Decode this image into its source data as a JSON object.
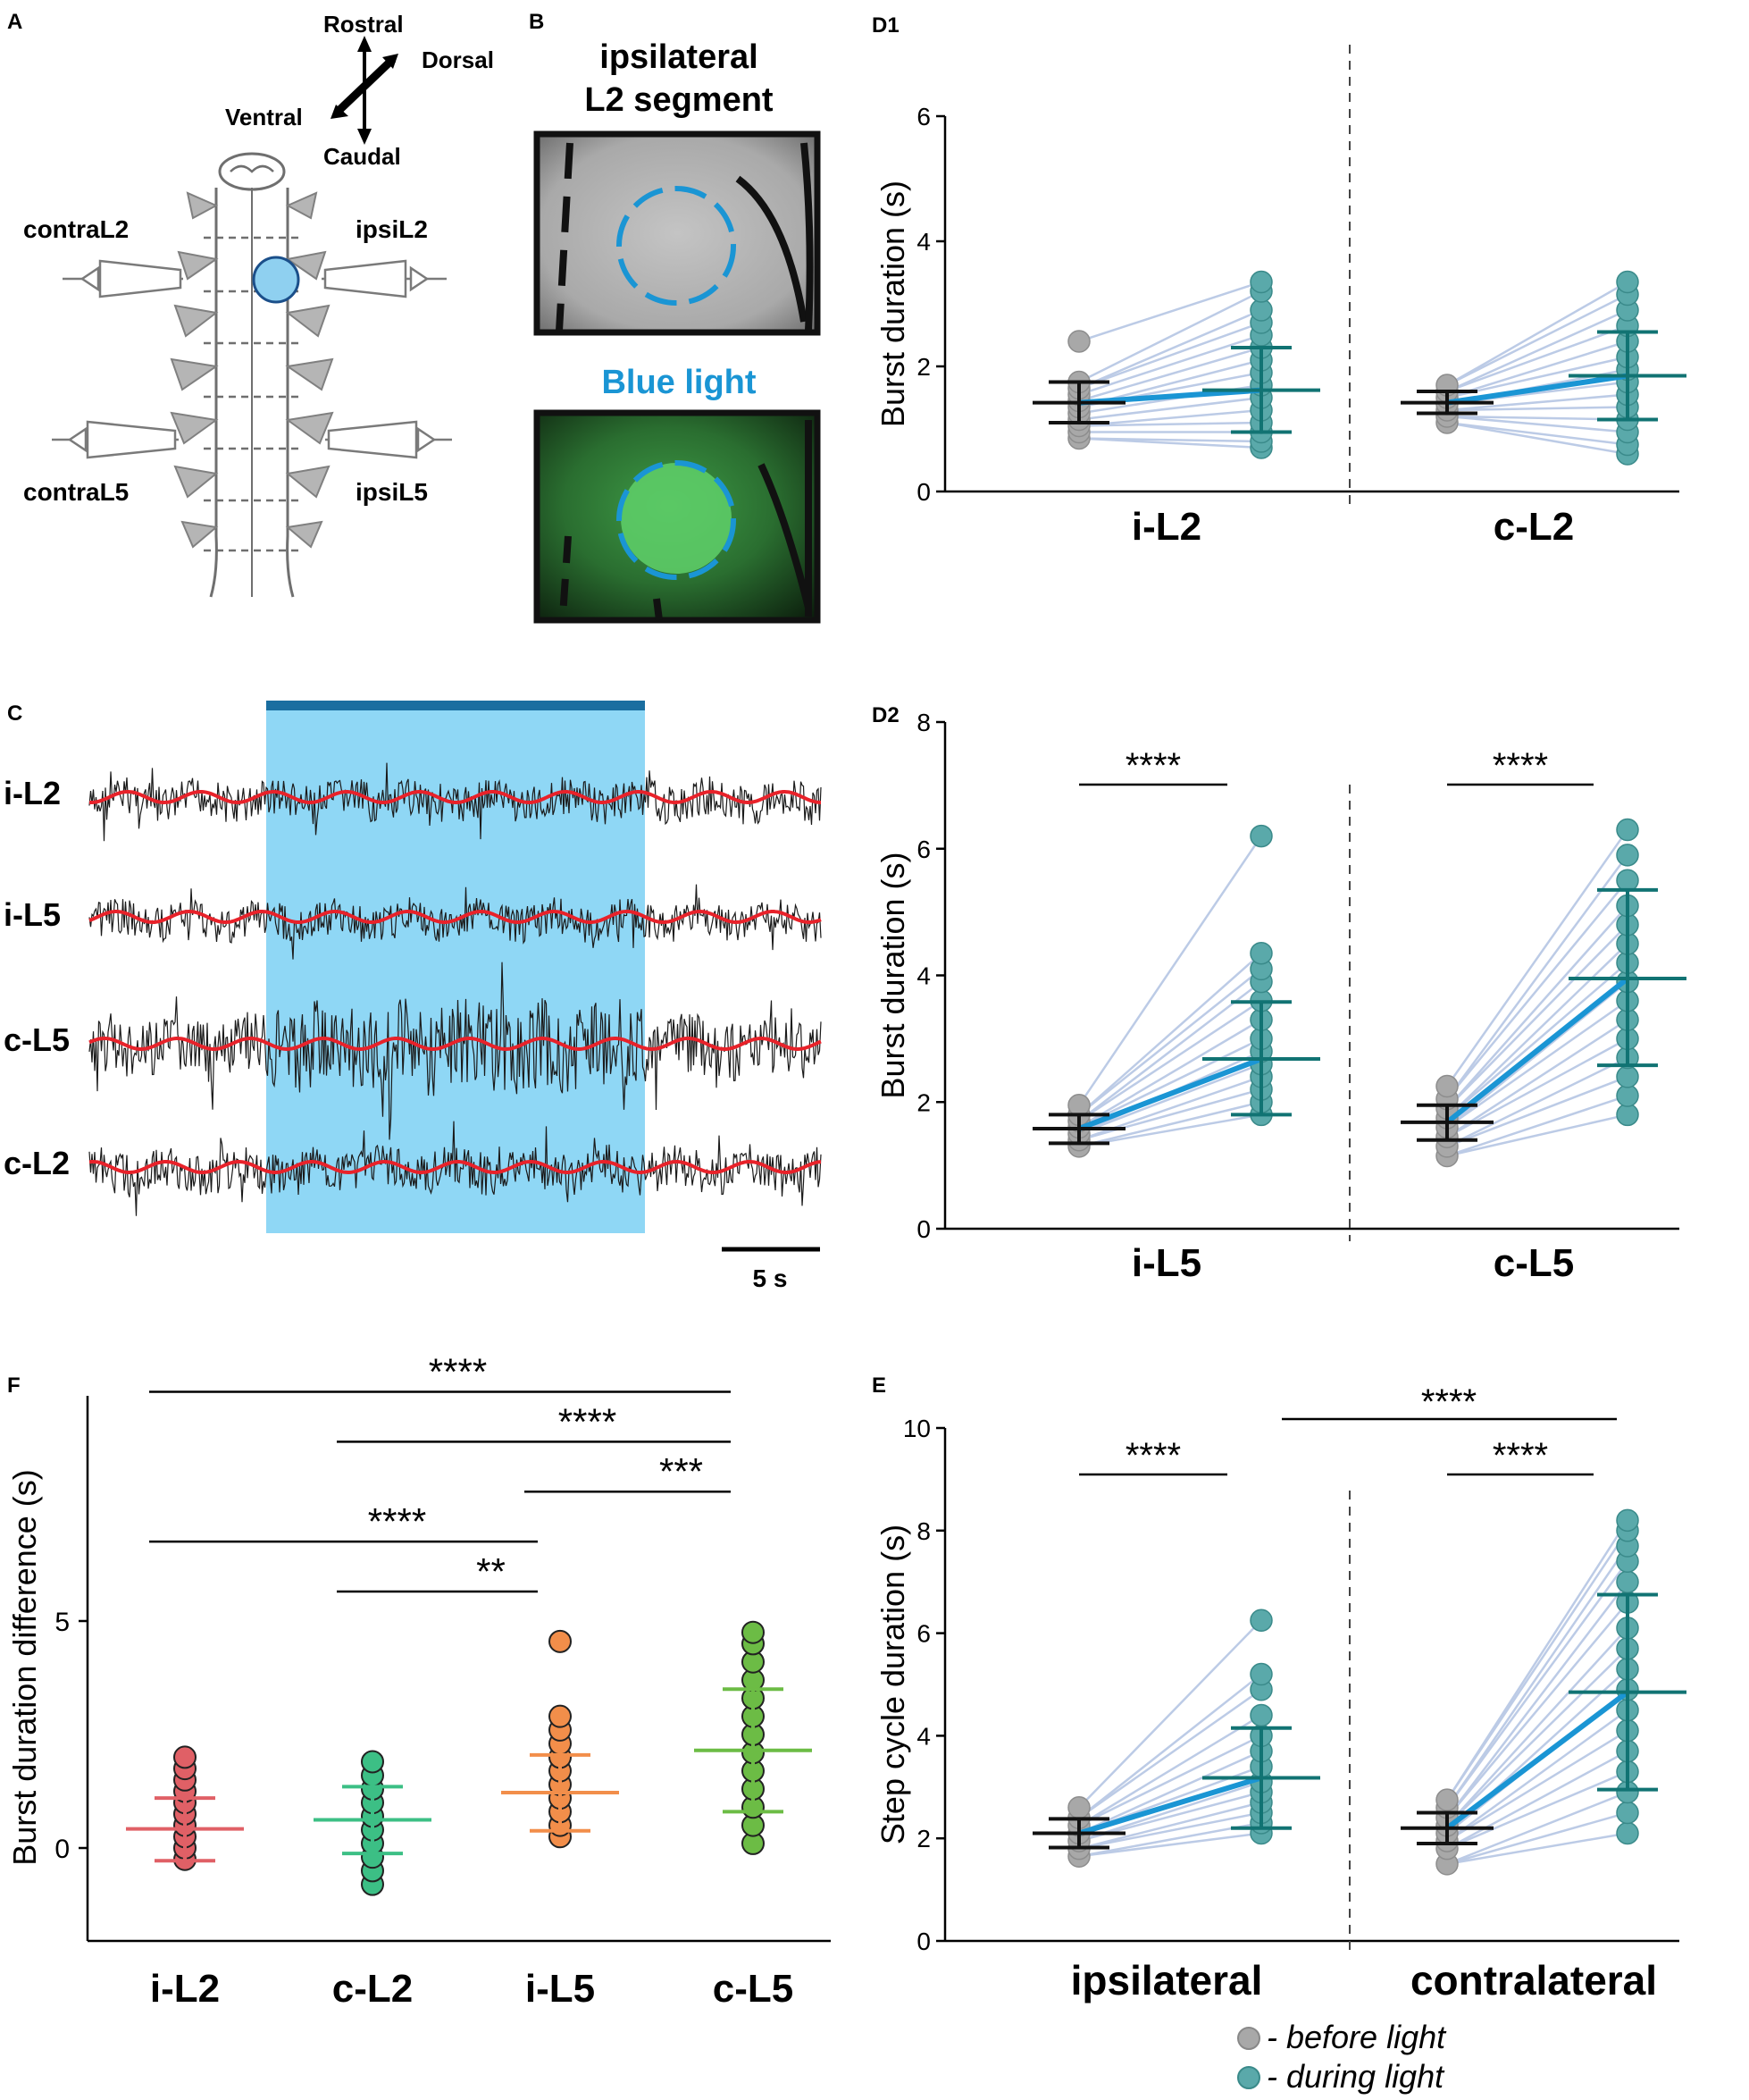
{
  "colors": {
    "before": "#a8a8a8",
    "during": "#5aa9aa",
    "during_dark": "#117373",
    "mean_line": "#1a95d4",
    "pair_line": "#bccbe6",
    "light_band": "#8fd7f5",
    "light_bar": "#1a6ea0",
    "trace_red": "#e8222a",
    "spot_blue": "#8fd0f0",
    "dash_blue": "#1a95d4",
    "blue_text": "#1a95d4",
    "f_red": "#e06066",
    "f_green": "#3cbf85",
    "f_orange": "#f28e4a",
    "f_lime": "#6cbc45"
  },
  "panel_a": {
    "label": "A",
    "axes": {
      "rostral": "Rostral",
      "dorsal": "Dorsal",
      "ventral": "Ventral",
      "caudal": "Caudal"
    },
    "nerves": {
      "contra_l2": "contraL2",
      "ipsi_l2": "ipsiL2",
      "contra_l5": "contraL5",
      "ipsi_l5": "ipsiL5"
    }
  },
  "panel_b": {
    "label": "B",
    "title_line1": "ipsilateral",
    "title_line2": "L2 segment",
    "blue_light_label": "Blue light"
  },
  "panel_c": {
    "label": "C",
    "traces": [
      "i-L2",
      "i-L5",
      "c-L5",
      "c-L2"
    ],
    "scale_bar_label": "5 s"
  },
  "legend": {
    "before": "- before light",
    "during": "- during light"
  },
  "chart_data": [
    {
      "panel": "D1",
      "type": "scatter",
      "ylabel": "Burst duration (s)",
      "ylim": [
        0,
        6
      ],
      "yticks": [
        0,
        2,
        4,
        6
      ],
      "groups": [
        "i-L2",
        "c-L2"
      ],
      "before": [
        {
          "mean": 1.42,
          "sd_low": 1.1,
          "sd_high": 1.75,
          "values": [
            0.85,
            0.95,
            1.05,
            1.15,
            1.25,
            1.35,
            1.45,
            1.55,
            1.65,
            1.75,
            2.4
          ]
        },
        {
          "mean": 1.42,
          "sd_low": 1.25,
          "sd_high": 1.6,
          "values": [
            1.1,
            1.2,
            1.3,
            1.4,
            1.5,
            1.6,
            1.7
          ]
        }
      ],
      "during": [
        {
          "mean": 1.62,
          "sd_low": 0.95,
          "sd_high": 2.3,
          "values": [
            0.7,
            0.8,
            0.95,
            1.1,
            1.3,
            1.5,
            1.7,
            1.9,
            2.1,
            2.3,
            2.5,
            2.7,
            2.9,
            3.2,
            3.35
          ]
        },
        {
          "mean": 1.85,
          "sd_low": 1.15,
          "sd_high": 2.55,
          "values": [
            0.6,
            0.75,
            0.95,
            1.15,
            1.35,
            1.55,
            1.75,
            1.95,
            2.15,
            2.4,
            2.65,
            2.9,
            3.15,
            3.35
          ]
        }
      ],
      "significance": [
        "",
        ""
      ]
    },
    {
      "panel": "D2",
      "type": "scatter",
      "ylabel": "Burst duration (s)",
      "ylim": [
        0,
        8
      ],
      "yticks": [
        0,
        2,
        4,
        6,
        8
      ],
      "groups": [
        "i-L5",
        "c-L5"
      ],
      "before": [
        {
          "mean": 1.58,
          "sd_low": 1.35,
          "sd_high": 1.8,
          "values": [
            1.3,
            1.4,
            1.5,
            1.6,
            1.7,
            1.8,
            1.95
          ]
        },
        {
          "mean": 1.68,
          "sd_low": 1.4,
          "sd_high": 1.95,
          "values": [
            1.15,
            1.3,
            1.45,
            1.6,
            1.75,
            1.9,
            2.05,
            2.25
          ]
        }
      ],
      "during": [
        {
          "mean": 2.68,
          "sd_low": 1.8,
          "sd_high": 3.58,
          "values": [
            1.8,
            2.0,
            2.2,
            2.4,
            2.6,
            2.8,
            3.0,
            3.3,
            3.6,
            3.9,
            4.1,
            4.35,
            6.2
          ]
        },
        {
          "mean": 3.95,
          "sd_low": 2.58,
          "sd_high": 5.35,
          "values": [
            1.8,
            2.1,
            2.4,
            2.7,
            3.0,
            3.3,
            3.6,
            3.9,
            4.2,
            4.5,
            4.8,
            5.1,
            5.5,
            5.9,
            6.3
          ]
        }
      ],
      "significance": [
        "****",
        "****"
      ]
    },
    {
      "panel": "E",
      "type": "scatter",
      "ylabel": "Step cycle duration (s)",
      "ylim": [
        0,
        10
      ],
      "yticks": [
        0,
        2,
        4,
        6,
        8,
        10
      ],
      "groups": [
        "ipsilateral",
        "contralateral"
      ],
      "before": [
        {
          "mean": 2.1,
          "sd_low": 1.82,
          "sd_high": 2.38,
          "values": [
            1.65,
            1.8,
            1.95,
            2.1,
            2.25,
            2.4,
            2.6
          ]
        },
        {
          "mean": 2.2,
          "sd_low": 1.9,
          "sd_high": 2.5,
          "values": [
            1.5,
            1.8,
            1.95,
            2.1,
            2.25,
            2.4,
            2.6,
            2.75
          ]
        }
      ],
      "during": [
        {
          "mean": 3.18,
          "sd_low": 2.2,
          "sd_high": 4.15,
          "values": [
            2.1,
            2.3,
            2.5,
            2.7,
            2.9,
            3.1,
            3.4,
            3.7,
            4.0,
            4.4,
            4.9,
            5.2,
            6.25
          ]
        },
        {
          "mean": 4.85,
          "sd_low": 2.95,
          "sd_high": 6.75,
          "values": [
            2.1,
            2.5,
            2.9,
            3.3,
            3.7,
            4.1,
            4.5,
            4.9,
            5.3,
            5.7,
            6.1,
            6.6,
            7.0,
            7.4,
            7.7,
            8.0,
            8.2
          ]
        }
      ],
      "significance": [
        "****",
        "****"
      ],
      "between": "****"
    },
    {
      "panel": "F",
      "type": "scatter",
      "ylabel": "Burst duration difference (s)",
      "ylim": [
        -2,
        10
      ],
      "yticks": [
        0,
        5
      ],
      "groups": [
        "i-L2",
        "c-L2",
        "i-L5",
        "c-L5"
      ],
      "series": [
        {
          "name": "i-L2",
          "mean": 0.42,
          "sd_low": -0.28,
          "sd_high": 1.1,
          "values": [
            -0.25,
            0.0,
            0.25,
            0.5,
            0.75,
            1.0,
            1.25,
            1.5,
            1.75,
            2.0
          ]
        },
        {
          "name": "c-L2",
          "mean": 0.62,
          "sd_low": -0.12,
          "sd_high": 1.35,
          "values": [
            -0.8,
            -0.5,
            -0.2,
            0.1,
            0.4,
            0.7,
            1.0,
            1.3,
            1.6,
            1.9
          ]
        },
        {
          "name": "i-L5",
          "mean": 1.22,
          "sd_low": 0.38,
          "sd_high": 2.05,
          "values": [
            0.25,
            0.5,
            0.8,
            1.1,
            1.4,
            1.7,
            2.0,
            2.3,
            2.6,
            2.9,
            4.55
          ]
        },
        {
          "name": "c-L5",
          "mean": 2.15,
          "sd_low": 0.8,
          "sd_high": 3.5,
          "values": [
            0.1,
            0.5,
            0.9,
            1.3,
            1.7,
            2.1,
            2.5,
            2.9,
            3.3,
            3.7,
            4.1,
            4.5,
            4.75
          ]
        }
      ],
      "comparisons": [
        {
          "from": "i-L2",
          "to": "c-L5",
          "label": "****",
          "y": 10.05
        },
        {
          "from": "c-L2",
          "to": "c-L5",
          "label": "****",
          "y": 8.95
        },
        {
          "from": "i-L5",
          "to": "c-L5",
          "label": "***",
          "y": 7.85
        },
        {
          "from": "i-L2",
          "to": "i-L5",
          "label": "****",
          "y": 6.75
        },
        {
          "from": "c-L2",
          "to": "i-L5",
          "label": "**",
          "y": 5.65
        }
      ]
    }
  ]
}
